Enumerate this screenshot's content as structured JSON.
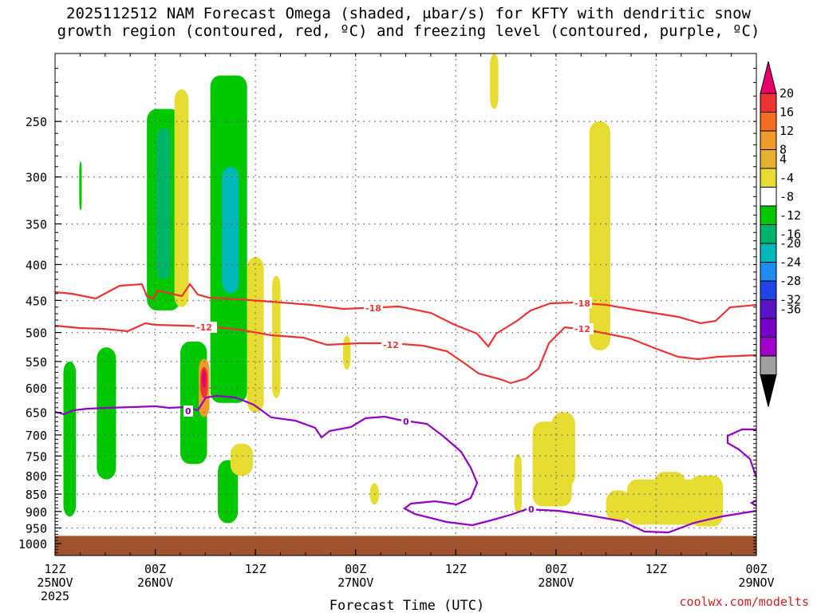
{
  "title_line1": "2025112512 NAM Forecast Omega (shaded, μbar/s) for KFTY with dendritic snow",
  "title_line2": "growth region (contoured, red, ºC) and freezing level (contoured, purple, ºC)",
  "credit": "coolwx.com/modelts",
  "chart_data": {
    "type": "heatmap",
    "xlabel": "Forecast Time (UTC)",
    "ylabel": "",
    "x_ticks": [
      {
        "line1": "12Z",
        "line2": "25NOV",
        "line3": "2025"
      },
      {
        "line1": "00Z",
        "line2": "26NOV",
        "line3": ""
      },
      {
        "line1": "12Z",
        "line2": "",
        "line3": ""
      },
      {
        "line1": "00Z",
        "line2": "27NOV",
        "line3": ""
      },
      {
        "line1": "12Z",
        "line2": "",
        "line3": ""
      },
      {
        "line1": "00Z",
        "line2": "28NOV",
        "line3": ""
      },
      {
        "line1": "12Z",
        "line2": "",
        "line3": ""
      },
      {
        "line1": "00Z",
        "line2": "29NOV",
        "line3": ""
      }
    ],
    "x_range_hours": [
      0,
      84
    ],
    "y_ticks": [
      250,
      300,
      350,
      400,
      450,
      500,
      550,
      600,
      650,
      700,
      750,
      800,
      850,
      900,
      950,
      1000
    ],
    "y_range_mb": [
      200,
      1040
    ],
    "y_scale": "log-pressure",
    "grid": true,
    "colorbar": {
      "labels": [
        "20",
        "16",
        "12",
        "8",
        "4",
        "-4",
        "-8",
        "-12",
        "-16",
        "-20",
        "-24",
        "-28",
        "-32",
        "-36"
      ],
      "colors": [
        "#e8006c",
        "#ee3333",
        "#f56d1e",
        "#f09a2a",
        "#e6b22e",
        "#e6dc32",
        "#ffffff",
        "#00c800",
        "#00b36b",
        "#00b8b8",
        "#1e8cf0",
        "#1e46e6",
        "#5a14c8",
        "#7800c8",
        "#a000c8",
        "#a0a0a0",
        "#000000"
      ]
    },
    "contours": [
      {
        "name": "dendritic snow growth region",
        "color": "#ee3333",
        "level_labels": [
          "-18",
          "-18",
          "-12",
          "-12",
          "-12"
        ]
      },
      {
        "name": "freezing level",
        "color": "#8800bb",
        "level_labels": [
          "0",
          "0",
          "0"
        ]
      }
    ],
    "shaded_regions": [
      {
        "category": "-4 to -8",
        "color": "#00c800",
        "hour_range": [
          1.0,
          2.5
        ],
        "p_range_mb": [
          550,
          915
        ]
      },
      {
        "category": "-4 to -8",
        "color": "#00c800",
        "hour_range": [
          2.9,
          3.2
        ],
        "p_range_mb": [
          285,
          335
        ]
      },
      {
        "category": "-4 to -8",
        "color": "#00c800",
        "hour_range": [
          5.0,
          7.3
        ],
        "p_range_mb": [
          525,
          810
        ]
      },
      {
        "category": "-4 to -8",
        "color": "#00c800",
        "hour_range": [
          11.0,
          15.0
        ],
        "p_range_mb": [
          240,
          465
        ]
      },
      {
        "category": "-4 to -8",
        "color": "#00c800",
        "hour_range": [
          15.0,
          18.2
        ],
        "p_range_mb": [
          515,
          770
        ]
      },
      {
        "category": "-4 to -8",
        "color": "#00c800",
        "hour_range": [
          18.6,
          23.0
        ],
        "p_range_mb": [
          215,
          630
        ]
      },
      {
        "category": "-4 to -8",
        "color": "#00c800",
        "hour_range": [
          19.5,
          21.9
        ],
        "p_range_mb": [
          760,
          935
        ]
      },
      {
        "category": "-8 to -12",
        "color": "#00b36b",
        "hour_range": [
          12.2,
          13.8
        ],
        "p_range_mb": [
          255,
          420
        ]
      },
      {
        "category": "-12 to -16",
        "color": "#00b8b8",
        "hour_range": [
          20.0,
          22.0
        ],
        "p_range_mb": [
          290,
          440
        ]
      },
      {
        "category": "4 to 8",
        "color": "#e6dc32",
        "hour_range": [
          14.3,
          16.0
        ],
        "p_range_mb": [
          225,
          460
        ]
      },
      {
        "category": "4 to 8",
        "color": "#e6dc32",
        "hour_range": [
          23.0,
          25.0
        ],
        "p_range_mb": [
          390,
          650
        ]
      },
      {
        "category": "4 to 8",
        "color": "#e6dc32",
        "hour_range": [
          26.0,
          27.0
        ],
        "p_range_mb": [
          415,
          620
        ]
      },
      {
        "category": "4 to 8",
        "color": "#e6dc32",
        "hour_range": [
          21.0,
          23.7
        ],
        "p_range_mb": [
          720,
          800
        ]
      },
      {
        "category": "4 to 8",
        "color": "#e6dc32",
        "hour_range": [
          52.1,
          53.1
        ],
        "p_range_mb": [
          200,
          240
        ]
      },
      {
        "category": "4 to 8",
        "color": "#e6dc32",
        "hour_range": [
          34.5,
          35.4
        ],
        "p_range_mb": [
          505,
          565
        ]
      },
      {
        "category": "4 to 8",
        "color": "#e6dc32",
        "hour_range": [
          37.7,
          38.8
        ],
        "p_range_mb": [
          820,
          880
        ]
      },
      {
        "category": "4 to 8",
        "color": "#e6dc32",
        "hour_range": [
          55.0,
          55.9
        ],
        "p_range_mb": [
          745,
          905
        ]
      },
      {
        "category": "4 to 8",
        "color": "#e6dc32",
        "hour_range": [
          57.2,
          61.9
        ],
        "p_range_mb": [
          670,
          885
        ]
      },
      {
        "category": "4 to 8",
        "color": "#e6dc32",
        "hour_range": [
          59.5,
          62.3
        ],
        "p_range_mb": [
          650,
          830
        ]
      },
      {
        "category": "4 to 8",
        "color": "#e6dc32",
        "hour_range": [
          64.0,
          66.5
        ],
        "p_range_mb": [
          250,
          530
        ]
      },
      {
        "category": "4 to 8",
        "color": "#e6dc32",
        "hour_range": [
          66.0,
          68.9
        ],
        "p_range_mb": [
          840,
          930
        ]
      },
      {
        "category": "4 to 8",
        "color": "#e6dc32",
        "hour_range": [
          68.5,
          78.5
        ],
        "p_range_mb": [
          810,
          940
        ]
      },
      {
        "category": "4 to 8",
        "color": "#e6dc32",
        "hour_range": [
          71.8,
          75.5
        ],
        "p_range_mb": [
          790,
          900
        ]
      },
      {
        "category": "4 to 8",
        "color": "#e6dc32",
        "hour_range": [
          76.0,
          80.0
        ],
        "p_range_mb": [
          800,
          945
        ]
      },
      {
        "category": "8 to 12",
        "color": "#f09a2a",
        "hour_range": [
          17.2,
          18.5
        ],
        "p_range_mb": [
          545,
          660
        ]
      },
      {
        "category": "16 to 20",
        "color": "#ee3333",
        "hour_range": [
          17.4,
          18.3
        ],
        "p_range_mb": [
          560,
          620
        ]
      },
      {
        "category": "20+",
        "color": "#e8006c",
        "hour_range": [
          17.6,
          18.1
        ],
        "p_range_mb": [
          565,
          600
        ]
      }
    ],
    "surface_band": {
      "color": "#a0522d",
      "p_range_mb": [
        975,
        1040
      ]
    }
  }
}
